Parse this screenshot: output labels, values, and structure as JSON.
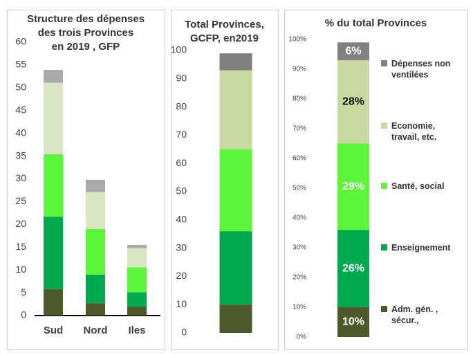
{
  "chart_data": [
    {
      "type": "bar",
      "stacked": true,
      "title": "Structure des dépenses\ndes trois Provinces\nen 2019 , GFP",
      "categories": [
        "Sud",
        "Nord",
        "Iles"
      ],
      "series": [
        {
          "color": "#4f5a2a",
          "values": [
            5.8,
            2.7,
            1.9
          ]
        },
        {
          "color": "#00a850",
          "values": [
            15.9,
            6.3,
            3.2
          ]
        },
        {
          "color": "#5cf53a",
          "values": [
            13.7,
            10.0,
            5.5
          ]
        },
        {
          "color": "#d9e6c4",
          "values": [
            15.7,
            8.1,
            4.2
          ]
        },
        {
          "color": "#a9a9a9",
          "values": [
            2.8,
            2.7,
            0.7
          ]
        }
      ],
      "ylim": [
        0,
        60
      ],
      "yticks": [
        0,
        5,
        10,
        15,
        20,
        25,
        30,
        35,
        40,
        45,
        50,
        55,
        60
      ]
    },
    {
      "type": "bar",
      "stacked": true,
      "title": "Total Provinces,\nGCFP, en2019",
      "categories": [
        null
      ],
      "series": [
        {
          "color": "#4f5a2a",
          "values": [
            10
          ]
        },
        {
          "color": "#00a850",
          "values": [
            26
          ]
        },
        {
          "color": "#5cf53a",
          "values": [
            29
          ]
        },
        {
          "color": "#c5d9a0",
          "values": [
            28
          ]
        },
        {
          "color": "#808080",
          "values": [
            6
          ]
        }
      ],
      "ylim": [
        0,
        100
      ],
      "yticks": [
        0,
        10,
        20,
        30,
        40,
        50,
        60,
        70,
        80,
        90,
        100
      ]
    },
    {
      "type": "bar",
      "stacked": true,
      "title": "% du total Provinces",
      "categories": [
        null
      ],
      "series": [
        {
          "name": "Adm. gén. , sécur.,",
          "color": "#4f5a2a",
          "values": [
            10
          ],
          "value_labels": [
            "10%"
          ]
        },
        {
          "name": "Enseignement",
          "color": "#00a850",
          "values": [
            26
          ],
          "value_labels": [
            "26%"
          ]
        },
        {
          "name": "Santé, social",
          "color": "#5cf53a",
          "values": [
            29
          ],
          "value_labels": [
            "29%"
          ]
        },
        {
          "name": "Economie, travail, etc.",
          "color": "#c5d9a0",
          "values": [
            28
          ],
          "value_labels": [
            "28%"
          ]
        },
        {
          "name": "Dépenses non ventilées",
          "color": "#808080",
          "values": [
            6
          ],
          "value_labels": [
            "6%"
          ]
        }
      ],
      "ylim": [
        0,
        100
      ],
      "yticks": [
        {
          "value": 0,
          "label": "0%"
        },
        {
          "value": 10,
          "label": "10%"
        },
        {
          "value": 20,
          "label": "20%"
        },
        {
          "value": 30,
          "label": "30%"
        },
        {
          "value": 40,
          "label": "40%"
        },
        {
          "value": 50,
          "label": "50%"
        },
        {
          "value": 60,
          "label": "60%"
        },
        {
          "value": 70,
          "label": "70%"
        },
        {
          "value": 80,
          "label": "80%"
        },
        {
          "value": 90,
          "label": "90%"
        },
        {
          "value": 100,
          "label": "100%"
        }
      ],
      "legend": "right"
    }
  ]
}
